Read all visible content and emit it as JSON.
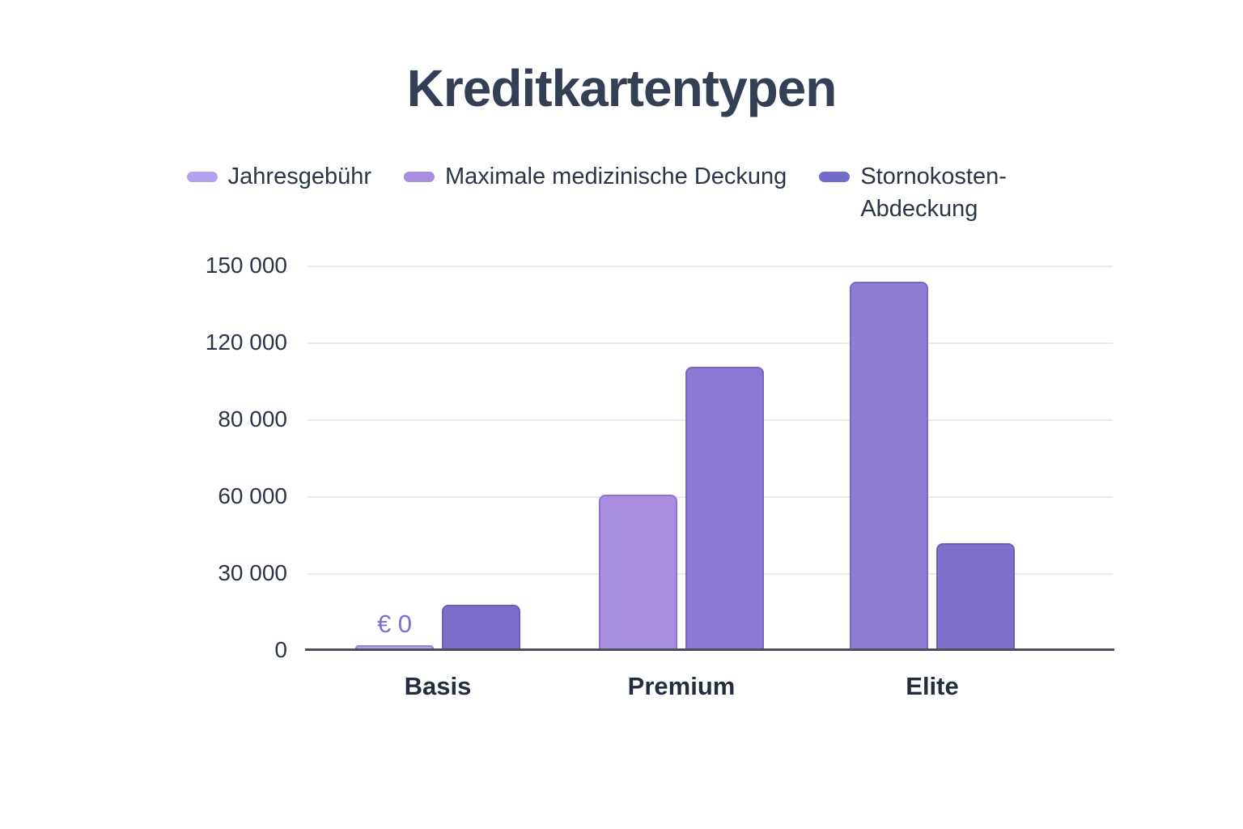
{
  "title": "Kreditkartentypen",
  "colors": {
    "background": "#ffffff",
    "title_text": "#343e54",
    "axis_text": "#2b3548",
    "x_label_text": "#242d3f",
    "gridline": "#ebebef",
    "axis_line": "#4c4f58",
    "value_label_text": "#7e6cd8"
  },
  "chart_data": {
    "type": "bar",
    "title": "Kreditkartentypen",
    "categories": [
      "Basis",
      "Premium",
      "Elite"
    ],
    "series": [
      {
        "name": "Jahresgebühr",
        "color": "#b3a1ef",
        "values": [
          0,
          null,
          null
        ]
      },
      {
        "name": "Maximale medizinische Deckung",
        "color": "#a88de1",
        "values": [
          null,
          60000,
          143000
        ]
      },
      {
        "name": "Stornokosten-Abdeckung",
        "color": "#7e6ecb",
        "values": [
          17000,
          110000,
          41000
        ]
      }
    ],
    "groups": [
      {
        "label": "Basis",
        "bars": [
          {
            "series": "Jahresgebühr",
            "value": 0,
            "color": "#b3a1ef",
            "data_label": "€ 0"
          },
          {
            "series": "Stornokosten-Abdeckung",
            "value": 17000,
            "color": "#7e6ecb"
          }
        ]
      },
      {
        "label": "Premium",
        "bars": [
          {
            "series": "Maximale medizinische Deckung",
            "value": 60000,
            "color": "#a88de1"
          },
          {
            "series": "Stornokosten-Abdeckung",
            "value": 110000,
            "color": "#8b79d3"
          }
        ]
      },
      {
        "label": "Elite",
        "bars": [
          {
            "series": "Maximale medizinische Deckung",
            "value": 143000,
            "color": "#8f7dd5"
          },
          {
            "series": "Stornokosten-Abdeckung",
            "value": 41000,
            "color": "#8070cc"
          }
        ]
      }
    ],
    "legend": [
      {
        "label": "Jahresgebühr",
        "color": "#b3a1ef",
        "wrap": false
      },
      {
        "label": "Maximale medizinische Deckung",
        "color": "#a88de1",
        "wrap": false
      },
      {
        "label": "Stornokosten-Abdeckung",
        "color": "#746cc9",
        "wrap": true
      }
    ],
    "legend_position": "top",
    "grid": true,
    "ylim": [
      0,
      150000
    ],
    "y_ticks": [
      "150 000",
      "120 000",
      "80 000",
      "60 000",
      "30 000",
      "0"
    ],
    "y_tick_values": [
      150000,
      120000,
      80000,
      60000,
      30000,
      0
    ]
  }
}
